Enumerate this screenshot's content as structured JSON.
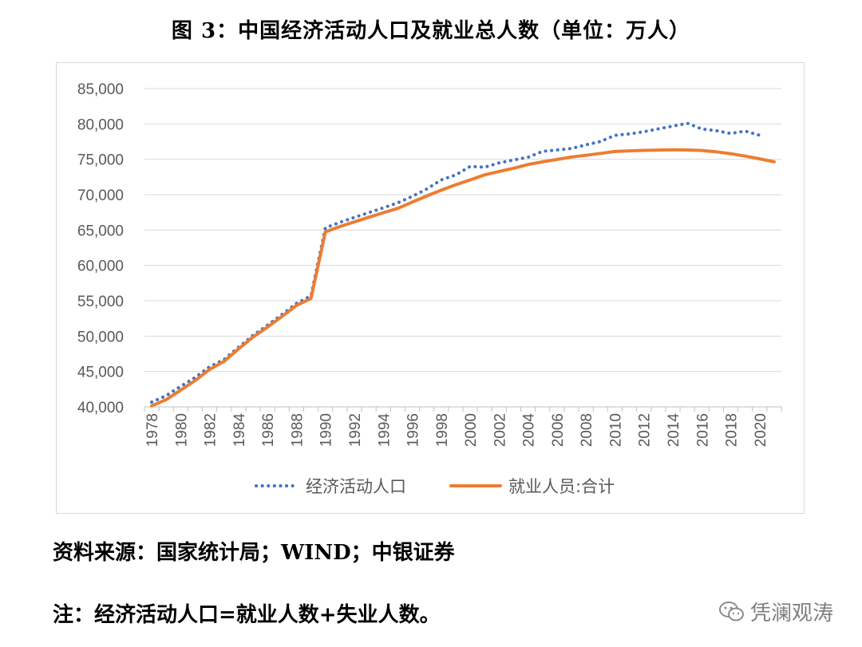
{
  "figure": {
    "title": "图 3：中国经济活动人口及就业总人数（单位：万人）",
    "source": "资料来源：国家统计局；WIND；中银证券",
    "note": "注：经济活动人口=就业人数+失业人数。",
    "watermark": "凭澜观涛"
  },
  "colors": {
    "economic_active": "#4472c4",
    "employed": "#ed7d31",
    "grid": "#d9d9d9",
    "axis": "#bfbfbf"
  },
  "chart_data": {
    "type": "line",
    "title": "中国经济活动人口及就业总人数（单位：万人）",
    "xlabel": "",
    "ylabel": "",
    "ylim": [
      40000,
      85000
    ],
    "yticks": [
      40000,
      45000,
      50000,
      55000,
      60000,
      65000,
      70000,
      75000,
      80000,
      85000
    ],
    "ytick_labels": [
      "40,000",
      "45,000",
      "50,000",
      "55,000",
      "60,000",
      "65,000",
      "70,000",
      "75,000",
      "80,000",
      "85,000"
    ],
    "x": [
      1978,
      1979,
      1980,
      1981,
      1982,
      1983,
      1984,
      1985,
      1986,
      1987,
      1988,
      1989,
      1990,
      1991,
      1992,
      1993,
      1994,
      1995,
      1996,
      1997,
      1998,
      1999,
      2000,
      2001,
      2002,
      2003,
      2004,
      2005,
      2006,
      2007,
      2008,
      2009,
      2010,
      2011,
      2012,
      2013,
      2014,
      2015,
      2016,
      2017,
      2018,
      2019,
      2020,
      2021
    ],
    "xtick_labels": [
      "1978",
      "1980",
      "1982",
      "1984",
      "1986",
      "1988",
      "1990",
      "1992",
      "1994",
      "1996",
      "1998",
      "2000",
      "2002",
      "2004",
      "2006",
      "2008",
      "2010",
      "2012",
      "2014",
      "2016",
      "2018",
      "2020"
    ],
    "legend_position": "bottom",
    "series": [
      {
        "name": "经济活动人口",
        "style": "dotted",
        "values": [
          40682,
          41592,
          42903,
          44165,
          45674,
          46707,
          48433,
          50112,
          51546,
          53060,
          54630,
          55707,
          65323,
          66091,
          66782,
          67468,
          68135,
          68855,
          69765,
          70800,
          72087,
          72791,
          73992,
          73884,
          74492,
          74911,
          75290,
          76120,
          76315,
          76531,
          77046,
          77510,
          78388,
          78579,
          78894,
          79300,
          79690,
          80091,
          79283,
          79042,
          78653,
          78985,
          78392,
          null
        ]
      },
      {
        "name": "就业人员:合计",
        "style": "solid",
        "values": [
          40152,
          41024,
          42361,
          43725,
          45295,
          46436,
          48197,
          49873,
          51282,
          52783,
          54334,
          55329,
          64749,
          65491,
          66152,
          66808,
          67455,
          68065,
          68950,
          69820,
          70637,
          71394,
          72085,
          72797,
          73280,
          73736,
          74264,
          74647,
          74978,
          75321,
          75564,
          75828,
          76105,
          76196,
          76254,
          76301,
          76349,
          76320,
          76245,
          76058,
          75782,
          75447,
          75064,
          74652
        ]
      }
    ]
  }
}
